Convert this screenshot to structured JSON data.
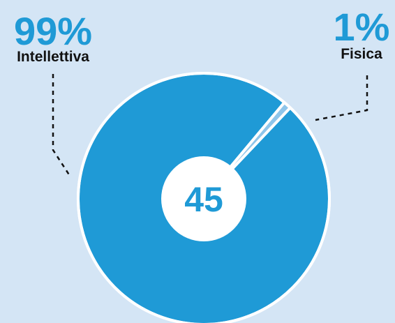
{
  "chart_data": {
    "type": "pie",
    "center_label": "45",
    "slices": [
      {
        "name": "Intellettiva",
        "percent_label": "99%",
        "value": 99
      },
      {
        "name": "Fisica",
        "percent_label": "1%",
        "value": 1
      }
    ]
  },
  "colors": {
    "background": "#d4e5f5",
    "slice_main": "#1f9ad6",
    "slice_small": "#8ec5ea",
    "outline": "#ffffff",
    "label_percent": "#1f9ad6",
    "label_text": "#111111",
    "leader_line": "#111111"
  }
}
